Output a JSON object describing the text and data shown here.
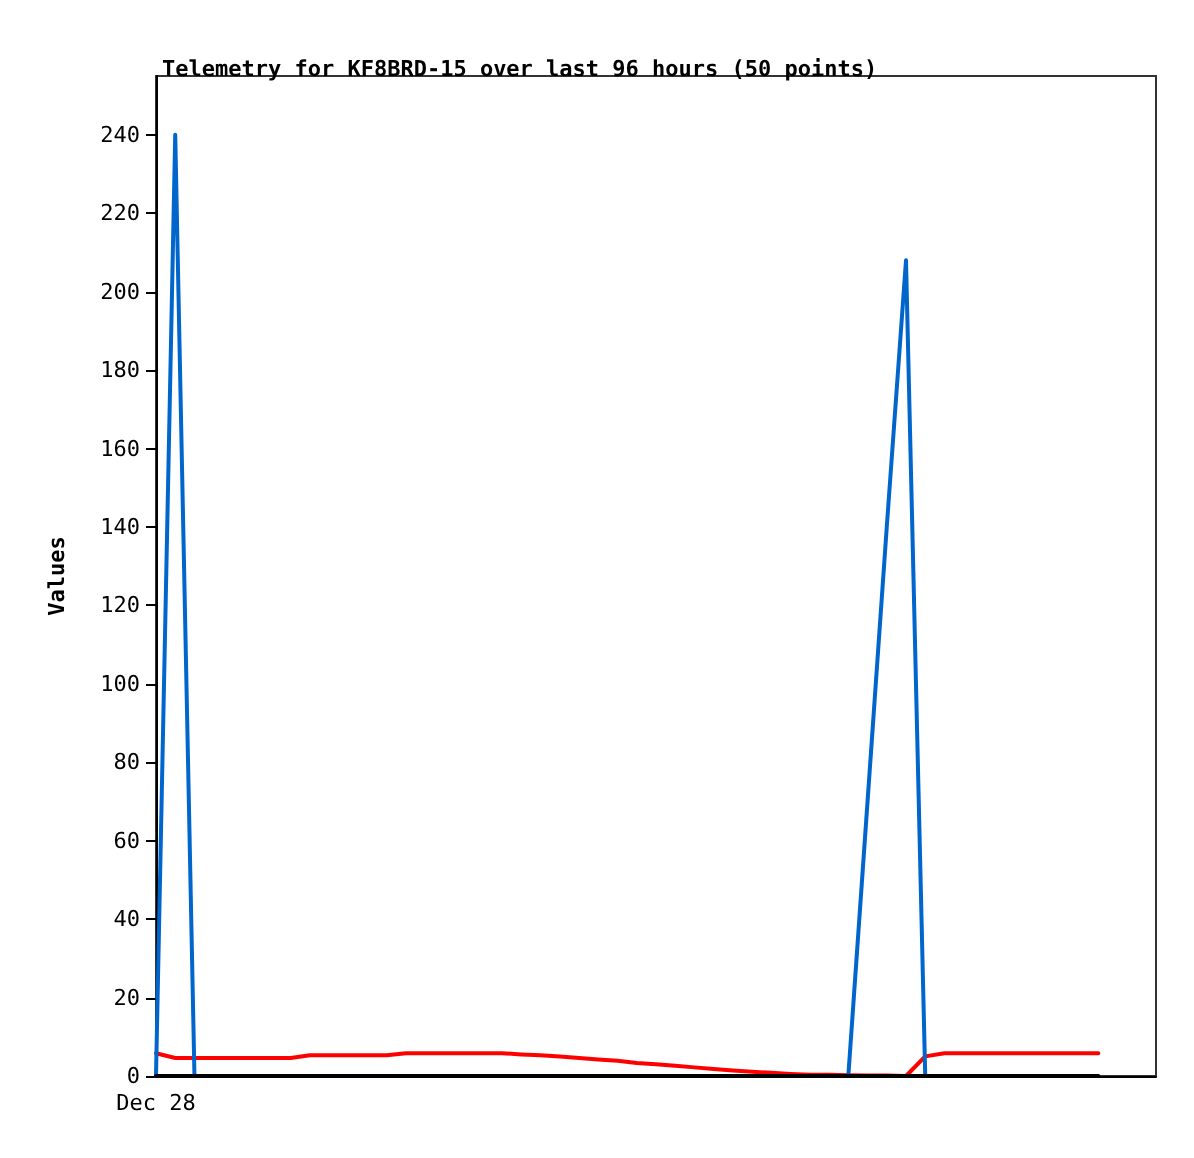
{
  "chart_data": {
    "type": "line",
    "title": "Telemetry for KF8BRD-15 over last 96 hours (50 points)",
    "ylabel": "Values",
    "categories": [
      "Dec 28",
      null,
      null,
      null,
      null,
      null,
      null,
      null,
      null,
      null,
      null,
      null,
      null,
      null,
      null,
      null,
      null,
      null,
      null,
      null,
      null,
      null,
      null,
      null,
      null,
      null,
      null,
      null,
      null,
      null,
      null,
      null,
      null,
      null,
      null,
      null,
      null,
      null,
      null,
      null,
      null,
      null,
      null,
      null,
      null,
      null,
      null,
      null,
      null,
      null,
      null,
      null,
      null
    ],
    "ylim": [
      0,
      255
    ],
    "yticks": [
      0,
      20,
      40,
      60,
      80,
      100,
      120,
      140,
      160,
      180,
      200,
      220,
      240
    ],
    "grid": false,
    "marker": "none",
    "line_style": "solid",
    "series": [
      {
        "color": "#ff0000",
        "values": [
          5.8,
          4.6,
          4.6,
          4.6,
          4.6,
          4.6,
          4.6,
          4.6,
          5.3,
          5.3,
          5.3,
          5.3,
          5.3,
          5.8,
          5.8,
          5.8,
          5.8,
          5.8,
          5.8,
          5.5,
          5.3,
          5.0,
          4.6,
          4.2,
          3.9,
          3.3,
          3.0,
          2.6,
          2.2,
          1.8,
          1.4,
          1.1,
          0.8,
          0.5,
          0.3,
          0.3,
          0.2,
          0.1,
          0.1,
          0,
          5,
          5.8,
          5.8,
          5.8,
          5.8,
          5.8,
          5.8,
          5.8,
          5.8,
          5.8,
          null,
          null,
          null
        ]
      },
      {
        "color": "#0066cc",
        "values": [
          0,
          240,
          0,
          null,
          null,
          null,
          null,
          null,
          null,
          null,
          null,
          null,
          null,
          null,
          null,
          null,
          null,
          null,
          null,
          null,
          null,
          null,
          null,
          null,
          null,
          null,
          null,
          null,
          null,
          null,
          null,
          null,
          null,
          null,
          null,
          null,
          0,
          70,
          140,
          208,
          0,
          null,
          null,
          null,
          null,
          null,
          null,
          null,
          null,
          null,
          null,
          null,
          null
        ]
      },
      {
        "color": "#000000",
        "values": [
          0,
          0,
          0,
          0,
          0,
          0,
          0,
          0,
          0,
          0,
          0,
          0,
          0,
          0,
          0,
          0,
          0,
          0,
          0,
          0,
          0,
          0,
          0,
          0,
          0,
          0,
          0,
          0,
          0,
          0,
          0,
          0,
          0,
          0,
          0,
          0,
          0,
          0,
          0,
          0,
          0,
          0,
          0,
          0,
          0,
          0,
          0,
          0,
          0,
          0,
          null,
          null,
          null
        ]
      }
    ]
  }
}
